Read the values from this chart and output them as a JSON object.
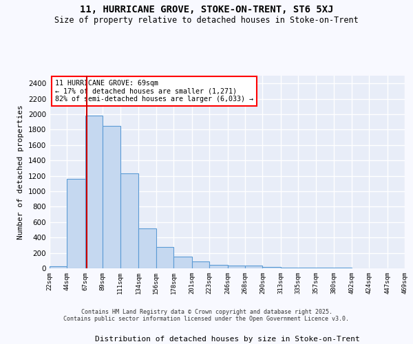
{
  "title": "11, HURRICANE GROVE, STOKE-ON-TRENT, ST6 5XJ",
  "subtitle": "Size of property relative to detached houses in Stoke-on-Trent",
  "xlabel": "Distribution of detached houses by size in Stoke-on-Trent",
  "ylabel": "Number of detached properties",
  "annotation_title": "11 HURRICANE GROVE: 69sqm",
  "annotation_line1": "← 17% of detached houses are smaller (1,271)",
  "annotation_line2": "82% of semi-detached houses are larger (6,033) →",
  "property_size": 69,
  "bin_edges": [
    22,
    44,
    67,
    89,
    111,
    134,
    156,
    178,
    201,
    223,
    246,
    268,
    290,
    313,
    335,
    357,
    380,
    402,
    424,
    447,
    469
  ],
  "bar_heights": [
    30,
    1160,
    1980,
    1850,
    1230,
    520,
    275,
    155,
    90,
    45,
    40,
    40,
    20,
    10,
    5,
    5,
    5,
    3,
    3,
    3
  ],
  "bar_color": "#c5d8f0",
  "bar_edge_color": "#5b9bd5",
  "vline_color": "#cc0000",
  "vline_x": 69,
  "fig_bg_color": "#f8f9ff",
  "axes_bg_color": "#e8edf8",
  "grid_color": "#ffffff",
  "ylim": [
    0,
    2500
  ],
  "yticks": [
    0,
    200,
    400,
    600,
    800,
    1000,
    1200,
    1400,
    1600,
    1800,
    2000,
    2200,
    2400
  ],
  "footer_line1": "Contains HM Land Registry data © Crown copyright and database right 2025.",
  "footer_line2": "Contains public sector information licensed under the Open Government Licence v3.0."
}
